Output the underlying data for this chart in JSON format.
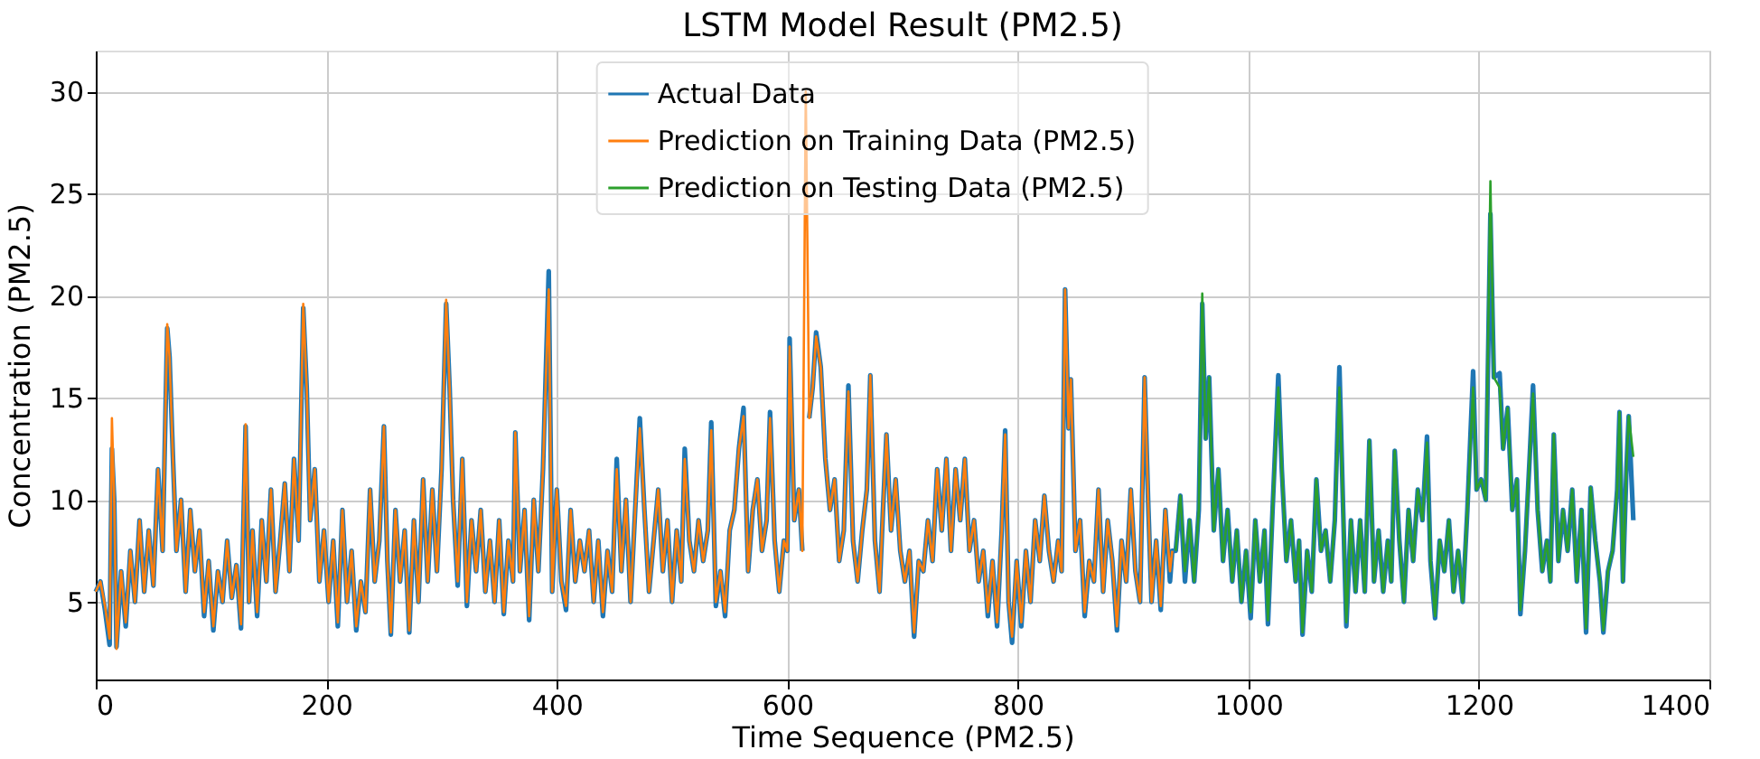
{
  "chart_data": {
    "type": "line",
    "title": "LSTM Model Result (PM2.5)",
    "xlabel": "Time Sequence (PM2.5)",
    "ylabel": "Concentration (PM2.5)",
    "xlim": [
      0,
      1400
    ],
    "xticks": [
      0,
      200,
      400,
      600,
      800,
      1000,
      1200,
      1400
    ],
    "ylim": [
      1.2,
      32
    ],
    "yticks": [
      5,
      10,
      15,
      20,
      25,
      30
    ],
    "grid": true,
    "legend": "top",
    "marker": "none",
    "line_style": "solid",
    "series": [
      {
        "name": "Actual Data",
        "color": "#1f77b4",
        "x": [
          0,
          4,
          8,
          12,
          14,
          16,
          18,
          22,
          26,
          30,
          34,
          38,
          42,
          46,
          50,
          54,
          58,
          62,
          64,
          67,
          70,
          74,
          78,
          82,
          86,
          90,
          94,
          98,
          102,
          106,
          110,
          114,
          118,
          122,
          126,
          130,
          133,
          136,
          140,
          144,
          148,
          152,
          156,
          160,
          164,
          168,
          172,
          176,
          180,
          183,
          186,
          190,
          194,
          198,
          202,
          206,
          210,
          214,
          218,
          222,
          226,
          230,
          234,
          238,
          242,
          246,
          250,
          253,
          256,
          260,
          264,
          268,
          272,
          276,
          280,
          284,
          288,
          292,
          296,
          300,
          304,
          307,
          310,
          314,
          318,
          322,
          326,
          330,
          334,
          338,
          342,
          346,
          350,
          354,
          358,
          362,
          364,
          368,
          372,
          376,
          380,
          384,
          388,
          393,
          396,
          400,
          404,
          408,
          412,
          416,
          420,
          424,
          428,
          432,
          436,
          440,
          444,
          448,
          452,
          456,
          460,
          464,
          468,
          472,
          476,
          480,
          484,
          488,
          492,
          496,
          500,
          504,
          508,
          511,
          515,
          519,
          523,
          527,
          531,
          534,
          538,
          542,
          546,
          550,
          554,
          558,
          562,
          566,
          570,
          574,
          578,
          582,
          585,
          589,
          593,
          597,
          600,
          602,
          606,
          610,
          613,
          616,
          619,
          622,
          625,
          629,
          633,
          637,
          641,
          645,
          649,
          653,
          657,
          661,
          665,
          669,
          672,
          676,
          680,
          683,
          686,
          690,
          694,
          698,
          702,
          706,
          710,
          714,
          718,
          722,
          726,
          730,
          734,
          738,
          742,
          746,
          750,
          754,
          758,
          762,
          766,
          770,
          774,
          778,
          782,
          786,
          789,
          792,
          795,
          799,
          803,
          807,
          811,
          815,
          819,
          823,
          827,
          831,
          835,
          838,
          841,
          844,
          846,
          850,
          854,
          858,
          862,
          866,
          870,
          874,
          878,
          882,
          886,
          890,
          894,
          898,
          902,
          906,
          910,
          913,
          916,
          920,
          924,
          928,
          932,
          934,
          937,
          941,
          945,
          949,
          953,
          957,
          960,
          963,
          966,
          970,
          974,
          978,
          982,
          986,
          990,
          994,
          998,
          1002,
          1006,
          1010,
          1014,
          1017,
          1021,
          1026,
          1029,
          1033,
          1037,
          1041,
          1044,
          1047,
          1051,
          1055,
          1059,
          1063,
          1067,
          1071,
          1075,
          1079,
          1082,
          1085,
          1089,
          1093,
          1097,
          1101,
          1105,
          1109,
          1113,
          1117,
          1121,
          1124,
          1127,
          1131,
          1135,
          1139,
          1143,
          1147,
          1151,
          1155,
          1158,
          1162,
          1166,
          1170,
          1174,
          1178,
          1182,
          1186,
          1190,
          1195,
          1198,
          1202,
          1206,
          1210,
          1213,
          1218,
          1221,
          1225,
          1229,
          1233,
          1236,
          1240,
          1244,
          1247,
          1251,
          1255,
          1259,
          1262,
          1265,
          1269,
          1273,
          1277,
          1281,
          1285,
          1289,
          1293,
          1297,
          1301,
          1305,
          1308,
          1312,
          1316,
          1320,
          1322,
          1325,
          1328,
          1330,
          1334
        ],
        "values": [
          5.5,
          6.0,
          4.6,
          2.9,
          12.5,
          10,
          2.8,
          6.5,
          3.8,
          7.5,
          5.0,
          9.0,
          5.5,
          8.5,
          5.8,
          11.5,
          7.5,
          18.4,
          17,
          12,
          7.5,
          10,
          5.5,
          9.5,
          6.5,
          8.5,
          4.3,
          7.0,
          3.6,
          6.5,
          5.0,
          8.0,
          5.2,
          6.8,
          3.7,
          13.6,
          5,
          8.5,
          4.3,
          9.0,
          6.0,
          10.5,
          5.5,
          8.0,
          10.8,
          6.5,
          12.0,
          8.0,
          19.4,
          15.5,
          9.0,
          11.5,
          6.0,
          8.5,
          5.0,
          8.0,
          3.8,
          9.5,
          5.0,
          7.5,
          3.6,
          6.0,
          4.5,
          10.5,
          6.0,
          8.0,
          13.6,
          7,
          3.4,
          9.5,
          6.0,
          8.5,
          3.5,
          9.0,
          5.0,
          11.0,
          6.0,
          10.5,
          6.5,
          11.5,
          19.6,
          15.5,
          10.0,
          5.8,
          12.0,
          4.8,
          9.0,
          6.5,
          9.5,
          5.5,
          8.0,
          5.0,
          9.0,
          4.4,
          8.0,
          6.0,
          13.3,
          6.5,
          9.5,
          4.1,
          10.0,
          6.5,
          11.5,
          21.2,
          5.5,
          10.5,
          6.0,
          4.6,
          9.5,
          6.0,
          8.0,
          6.5,
          8.5,
          5.0,
          8.0,
          4.3,
          7.5,
          5.5,
          12.0,
          6.5,
          10.0,
          5.0,
          9.5,
          14.0,
          9.5,
          5.5,
          8.0,
          10.5,
          6.5,
          9.0,
          5.0,
          8.5,
          6.0,
          12.5,
          8.0,
          6.5,
          9.0,
          7.0,
          8.5,
          13.8,
          4.8,
          6.5,
          4.3,
          8.5,
          9.5,
          12.5,
          14.5,
          6.5,
          9.5,
          11.0,
          7.5,
          9.0,
          14.3,
          8.0,
          5.5,
          8.0,
          7.5,
          17.9,
          9.0,
          10.5,
          7.5,
          null,
          14.0,
          15.5,
          18.2,
          16.5,
          12.0,
          9.5,
          11.0,
          7.0,
          8.5,
          15.6,
          8.0,
          6.0,
          8.5,
          10.5,
          16.1,
          8.0,
          5.5,
          9.5,
          13.2,
          8.5,
          11.0,
          7.5,
          6.0,
          7.5,
          3.3,
          7.0,
          6.5,
          9.0,
          7.0,
          11.5,
          8.5,
          12.0,
          7.5,
          11.5,
          9.0,
          12.0,
          7.5,
          9.0,
          6.0,
          7.5,
          4.3,
          7.0,
          3.8,
          8.5,
          13.4,
          5.0,
          3.0,
          7.0,
          3.8,
          7.5,
          5.0,
          9.0,
          7.0,
          10.2,
          7.5,
          6.0,
          8.0,
          6.5,
          20.3,
          13.5,
          15.9,
          7.5,
          9.0,
          4.3,
          7.0,
          6.0,
          10.5,
          5.5,
          9.0,
          7.0,
          3.6,
          8.0,
          6.0,
          10.5,
          6.5,
          5.0,
          16.0,
          10.0,
          5.0,
          8.0,
          4.6,
          9.5,
          6.0,
          7.5,
          7.5,
          10.2,
          6.0,
          9.0,
          6.0,
          9.5,
          19.6,
          13.0,
          16.0,
          8.5,
          11.5,
          7.0,
          9.5,
          6.0,
          8.5,
          5.0,
          7.5,
          4.2,
          9.0,
          6.0,
          8.5,
          3.9,
          9.5,
          16.1,
          11.5,
          7.0,
          9.0,
          6.0,
          8.0,
          3.4,
          7.5,
          5.5,
          11.0,
          7.5,
          8.5,
          6.0,
          9.0,
          16.5,
          10.0,
          3.8,
          9.0,
          5.5,
          9.0,
          5.5,
          12.9,
          6.0,
          8.5,
          5.5,
          8.0,
          6.0,
          12.4,
          8.0,
          5.0,
          9.5,
          7.0,
          10.5,
          9.0,
          13.1,
          7.0,
          4.2,
          8.0,
          6.5,
          9.0,
          5.5,
          7.5,
          5.0,
          9.5,
          16.3,
          10.5,
          11.0,
          10.0,
          24.0,
          16.0,
          16.2,
          12.5,
          14.5,
          9.5,
          11.0,
          4.4,
          7.5,
          12.0,
          15.6,
          9.5,
          6.5,
          8.0,
          6.0,
          13.2,
          7.0,
          9.5,
          7.5,
          10.5,
          6.0,
          9.5,
          3.5,
          10.6,
          8.0,
          6.0,
          3.5,
          6.5,
          7.5,
          10.5,
          14.3,
          6.0,
          11.5,
          14.1,
          9.0
        ]
      },
      {
        "name": "Prediction on Training Data (PM2.5)",
        "color": "#ff7f0e",
        "x": [
          0,
          4,
          8,
          12,
          14,
          16,
          18,
          22,
          26,
          30,
          34,
          38,
          42,
          46,
          50,
          54,
          58,
          62,
          64,
          67,
          70,
          74,
          78,
          82,
          86,
          90,
          94,
          98,
          102,
          106,
          110,
          114,
          118,
          122,
          126,
          130,
          133,
          136,
          140,
          144,
          148,
          152,
          156,
          160,
          164,
          168,
          172,
          176,
          180,
          183,
          186,
          190,
          194,
          198,
          202,
          206,
          210,
          214,
          218,
          222,
          226,
          230,
          234,
          238,
          242,
          246,
          250,
          253,
          256,
          260,
          264,
          268,
          272,
          276,
          280,
          284,
          288,
          292,
          296,
          300,
          304,
          307,
          310,
          314,
          318,
          322,
          326,
          330,
          334,
          338,
          342,
          346,
          350,
          354,
          358,
          362,
          364,
          368,
          372,
          376,
          380,
          384,
          388,
          393,
          396,
          400,
          404,
          408,
          412,
          416,
          420,
          424,
          428,
          432,
          436,
          440,
          444,
          448,
          452,
          456,
          460,
          464,
          468,
          472,
          476,
          480,
          484,
          488,
          492,
          496,
          500,
          504,
          508,
          511,
          515,
          519,
          523,
          527,
          531,
          534,
          538,
          542,
          546,
          550,
          554,
          558,
          562,
          566,
          570,
          574,
          578,
          582,
          585,
          589,
          593,
          597,
          600,
          602,
          606,
          610,
          613,
          616,
          619,
          622,
          625,
          629,
          633,
          637,
          641,
          645,
          649,
          653,
          657,
          661,
          665,
          669,
          672,
          676,
          680,
          683,
          686,
          690,
          694,
          698,
          702,
          706,
          710,
          714,
          718,
          722,
          726,
          730,
          734,
          738,
          742,
          746,
          750,
          754,
          758,
          762,
          766,
          770,
          774,
          778,
          782,
          786,
          789,
          792,
          795,
          799,
          803,
          807,
          811,
          815,
          819,
          823,
          827,
          831,
          835,
          838,
          841,
          844,
          846,
          850,
          854,
          858,
          862,
          866,
          870,
          874,
          878,
          882,
          886,
          890,
          894,
          898,
          902,
          906,
          910,
          913,
          916,
          920,
          924,
          928,
          932,
          934
        ],
        "values": [
          5.5,
          6.0,
          4.8,
          3.2,
          14.0,
          10,
          2.7,
          6.5,
          4.0,
          7.5,
          5.0,
          9.0,
          5.5,
          8.5,
          5.8,
          11.5,
          7.5,
          18.6,
          17,
          12,
          7.5,
          10,
          5.5,
          9.5,
          6.5,
          8.5,
          4.5,
          7.0,
          3.8,
          6.5,
          5.0,
          8.0,
          5.2,
          6.8,
          3.9,
          13.7,
          5,
          8.5,
          4.5,
          9.0,
          6.0,
          10.5,
          5.5,
          8.0,
          10.8,
          6.5,
          12.0,
          8.0,
          19.6,
          15.5,
          9.0,
          11.5,
          6.0,
          8.5,
          5.0,
          8.0,
          4.0,
          9.5,
          5.0,
          7.5,
          3.8,
          6.0,
          4.5,
          10.5,
          6.0,
          8.0,
          13.6,
          7,
          3.5,
          9.5,
          6.0,
          8.5,
          3.6,
          9.0,
          5.0,
          11.0,
          6.0,
          10.5,
          6.5,
          11.5,
          19.8,
          15.5,
          10.0,
          6.0,
          12.0,
          5.0,
          9.0,
          6.5,
          9.5,
          5.5,
          8.0,
          5.0,
          9.0,
          4.5,
          8.0,
          6.0,
          13.3,
          6.5,
          9.5,
          4.3,
          10.0,
          6.5,
          11.5,
          20.3,
          5.5,
          10.5,
          6.0,
          4.8,
          9.5,
          6.0,
          8.0,
          6.5,
          8.5,
          5.0,
          8.0,
          4.5,
          7.5,
          5.5,
          11.5,
          6.5,
          10.0,
          5.0,
          9.5,
          13.5,
          9.5,
          5.5,
          8.0,
          10.5,
          6.5,
          9.0,
          5.0,
          8.5,
          6.0,
          12.0,
          8.0,
          6.5,
          9.0,
          7.0,
          8.5,
          13.4,
          5.0,
          6.5,
          4.5,
          8.5,
          9.5,
          12.5,
          14.1,
          6.5,
          9.5,
          11.0,
          7.5,
          9.0,
          14.0,
          8.0,
          5.5,
          8.0,
          7.5,
          17.5,
          9.0,
          10.5,
          7.5,
          30.0,
          14.0,
          15.5,
          18.0,
          16.5,
          12.0,
          9.5,
          11.0,
          7.0,
          8.5,
          15.3,
          8.0,
          6.0,
          8.5,
          10.5,
          16.1,
          8.0,
          5.5,
          9.5,
          13.2,
          8.5,
          11.0,
          7.5,
          6.0,
          7.5,
          3.5,
          7.0,
          6.5,
          9.0,
          7.0,
          11.5,
          8.5,
          12.0,
          7.5,
          11.5,
          9.0,
          12.0,
          7.5,
          9.0,
          6.0,
          7.5,
          4.5,
          7.0,
          4.0,
          8.5,
          13.2,
          5.0,
          3.3,
          7.0,
          4.0,
          7.5,
          5.0,
          9.0,
          7.0,
          10.2,
          7.5,
          6.0,
          8.0,
          6.5,
          20.3,
          13.5,
          15.9,
          7.5,
          9.0,
          4.5,
          7.0,
          6.0,
          10.5,
          5.5,
          9.0,
          7.0,
          3.8,
          8.0,
          6.0,
          10.5,
          6.5,
          5.0,
          16.0,
          10.0,
          5.0,
          8.0,
          4.8,
          9.5,
          6.5,
          7.5
        ]
      },
      {
        "name": "Prediction on Testing Data (PM2.5)",
        "color": "#2ca02c",
        "x": [
          937,
          941,
          945,
          949,
          953,
          957,
          960,
          963,
          966,
          970,
          974,
          978,
          982,
          986,
          990,
          994,
          998,
          1002,
          1006,
          1010,
          1014,
          1017,
          1021,
          1026,
          1029,
          1033,
          1037,
          1041,
          1044,
          1047,
          1051,
          1055,
          1059,
          1063,
          1067,
          1071,
          1075,
          1079,
          1082,
          1085,
          1089,
          1093,
          1097,
          1101,
          1105,
          1109,
          1113,
          1117,
          1121,
          1124,
          1127,
          1131,
          1135,
          1139,
          1143,
          1147,
          1151,
          1155,
          1158,
          1162,
          1166,
          1170,
          1174,
          1178,
          1182,
          1186,
          1190,
          1195,
          1198,
          1202,
          1206,
          1210,
          1213,
          1218,
          1221,
          1225,
          1229,
          1233,
          1236,
          1240,
          1244,
          1247,
          1251,
          1255,
          1259,
          1262,
          1265,
          1269,
          1273,
          1277,
          1281,
          1285,
          1289,
          1293,
          1297,
          1301,
          1305,
          1308,
          1312,
          1316,
          1320,
          1322,
          1325,
          1328,
          1330,
          1334
        ],
        "values": [
          7.5,
          10.2,
          6.5,
          9.0,
          6.0,
          9.5,
          20.1,
          13.0,
          16.0,
          8.5,
          11.5,
          7.0,
          9.5,
          6.0,
          8.5,
          5.0,
          7.5,
          4.5,
          9.0,
          6.0,
          8.5,
          4.1,
          9.5,
          15.5,
          11.5,
          7.0,
          9.0,
          6.0,
          8.0,
          3.5,
          7.5,
          5.5,
          11.0,
          7.5,
          8.5,
          6.0,
          9.0,
          15.5,
          10.0,
          4.0,
          9.0,
          5.5,
          9.0,
          5.5,
          12.9,
          6.0,
          8.5,
          5.5,
          8.0,
          6.0,
          12.4,
          8.0,
          5.0,
          9.5,
          7.0,
          10.5,
          9.0,
          12.8,
          7.0,
          4.3,
          8.0,
          6.5,
          9.0,
          5.5,
          7.5,
          5.0,
          9.5,
          15.5,
          10.5,
          11.0,
          10.0,
          25.6,
          16.0,
          15.5,
          12.5,
          14.5,
          9.5,
          11.0,
          4.6,
          7.5,
          12.0,
          15.2,
          9.5,
          6.5,
          8.0,
          6.0,
          13.2,
          7.0,
          9.5,
          7.5,
          10.5,
          6.0,
          9.5,
          3.7,
          10.6,
          8.0,
          6.0,
          3.6,
          6.5,
          7.5,
          10.5,
          14.3,
          6.0,
          11.5,
          14.1,
          12.1
        ]
      }
    ]
  }
}
